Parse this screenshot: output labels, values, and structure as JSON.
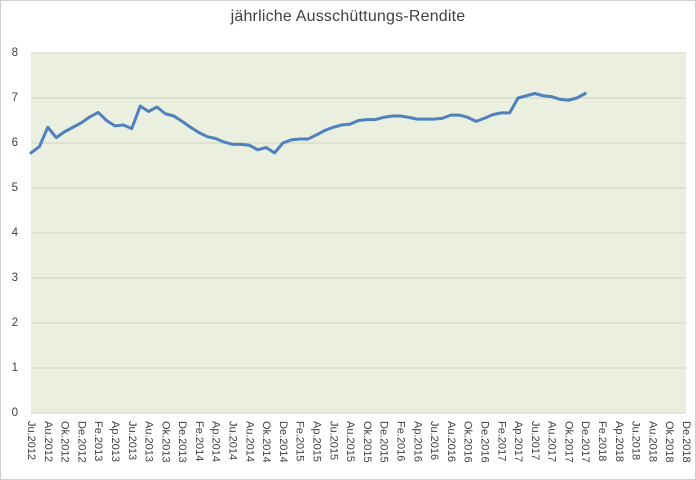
{
  "chart_data": {
    "type": "line",
    "title": "jährliche Ausschüttungs-Rendite",
    "xlabel": "",
    "ylabel": "",
    "ylim": [
      0,
      8
    ],
    "y_ticks": [
      0,
      1,
      2,
      3,
      4,
      5,
      6,
      7,
      8
    ],
    "grid": true,
    "legend": "none",
    "x_tick_labels": [
      "Ju.2012",
      "Au.2012",
      "Ok.2012",
      "De.2012",
      "Fe.2013",
      "Ap.2013",
      "Ju.2013",
      "Au.2013",
      "Ok.2013",
      "De.2013",
      "Fe.2014",
      "Ap.2014",
      "Ju.2014",
      "Au.2014",
      "Ok.2014",
      "De.2014",
      "Fe.2015",
      "Ap.2015",
      "Ju.2015",
      "Au.2015",
      "Ok.2015",
      "De.2015",
      "Fe.2016",
      "Ap.2016",
      "Ju.2016",
      "Au.2016",
      "Ok.2016",
      "De.2016",
      "Fe.2017",
      "Ap.2017",
      "Ju.2017",
      "Au.2017",
      "Ok.2017",
      "De.2017",
      "Fe.2018",
      "Ap.2018",
      "Ju.2018",
      "Au.2018",
      "Ok.2018",
      "De.2018"
    ],
    "label_every_n_categories": 2,
    "x_categories_total": 79,
    "series": [
      {
        "name": "jährliche Ausschüttungs-Rendite",
        "start_category": "Ju.2012",
        "end_category": "De.2017",
        "values": [
          5.78,
          5.92,
          6.35,
          6.12,
          6.25,
          6.35,
          6.45,
          6.58,
          6.68,
          6.5,
          6.38,
          6.4,
          6.32,
          6.82,
          6.7,
          6.8,
          6.65,
          6.6,
          6.48,
          6.35,
          6.23,
          6.14,
          6.1,
          6.02,
          5.97,
          5.97,
          5.95,
          5.85,
          5.9,
          5.78,
          6.0,
          6.07,
          6.09,
          6.09,
          6.18,
          6.28,
          6.35,
          6.4,
          6.42,
          6.5,
          6.52,
          6.52,
          6.57,
          6.6,
          6.6,
          6.57,
          6.53,
          6.53,
          6.53,
          6.55,
          6.62,
          6.62,
          6.57,
          6.48,
          6.55,
          6.63,
          6.67,
          6.67,
          7.0,
          7.05,
          7.1,
          7.05,
          7.03,
          6.97,
          6.95,
          7.0,
          7.1
        ]
      }
    ],
    "colors": {
      "line": "#4f81bd",
      "plot_background": "#ebefdf",
      "gridline": "#cfd3c0",
      "axis_text": "#404040",
      "title_text": "#3f3f3f"
    }
  }
}
